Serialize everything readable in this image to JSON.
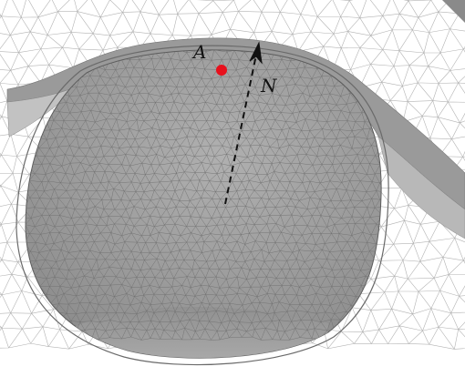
{
  "figure": {
    "labels": {
      "point": "A",
      "normal": "N"
    },
    "colors": {
      "background": "#ffffff",
      "mesh_line": "#b3b3b3",
      "dark_mesh_line": "#6f6f6f",
      "cavity_fill": "#8c8c8c",
      "cavity_light": "#a8a8a8",
      "rim_fill": "#9a9a9a",
      "point": "#e8101c",
      "arrow": "#111111"
    },
    "icons": {
      "point": "red-dot",
      "normal": "dashed-arrow"
    }
  }
}
